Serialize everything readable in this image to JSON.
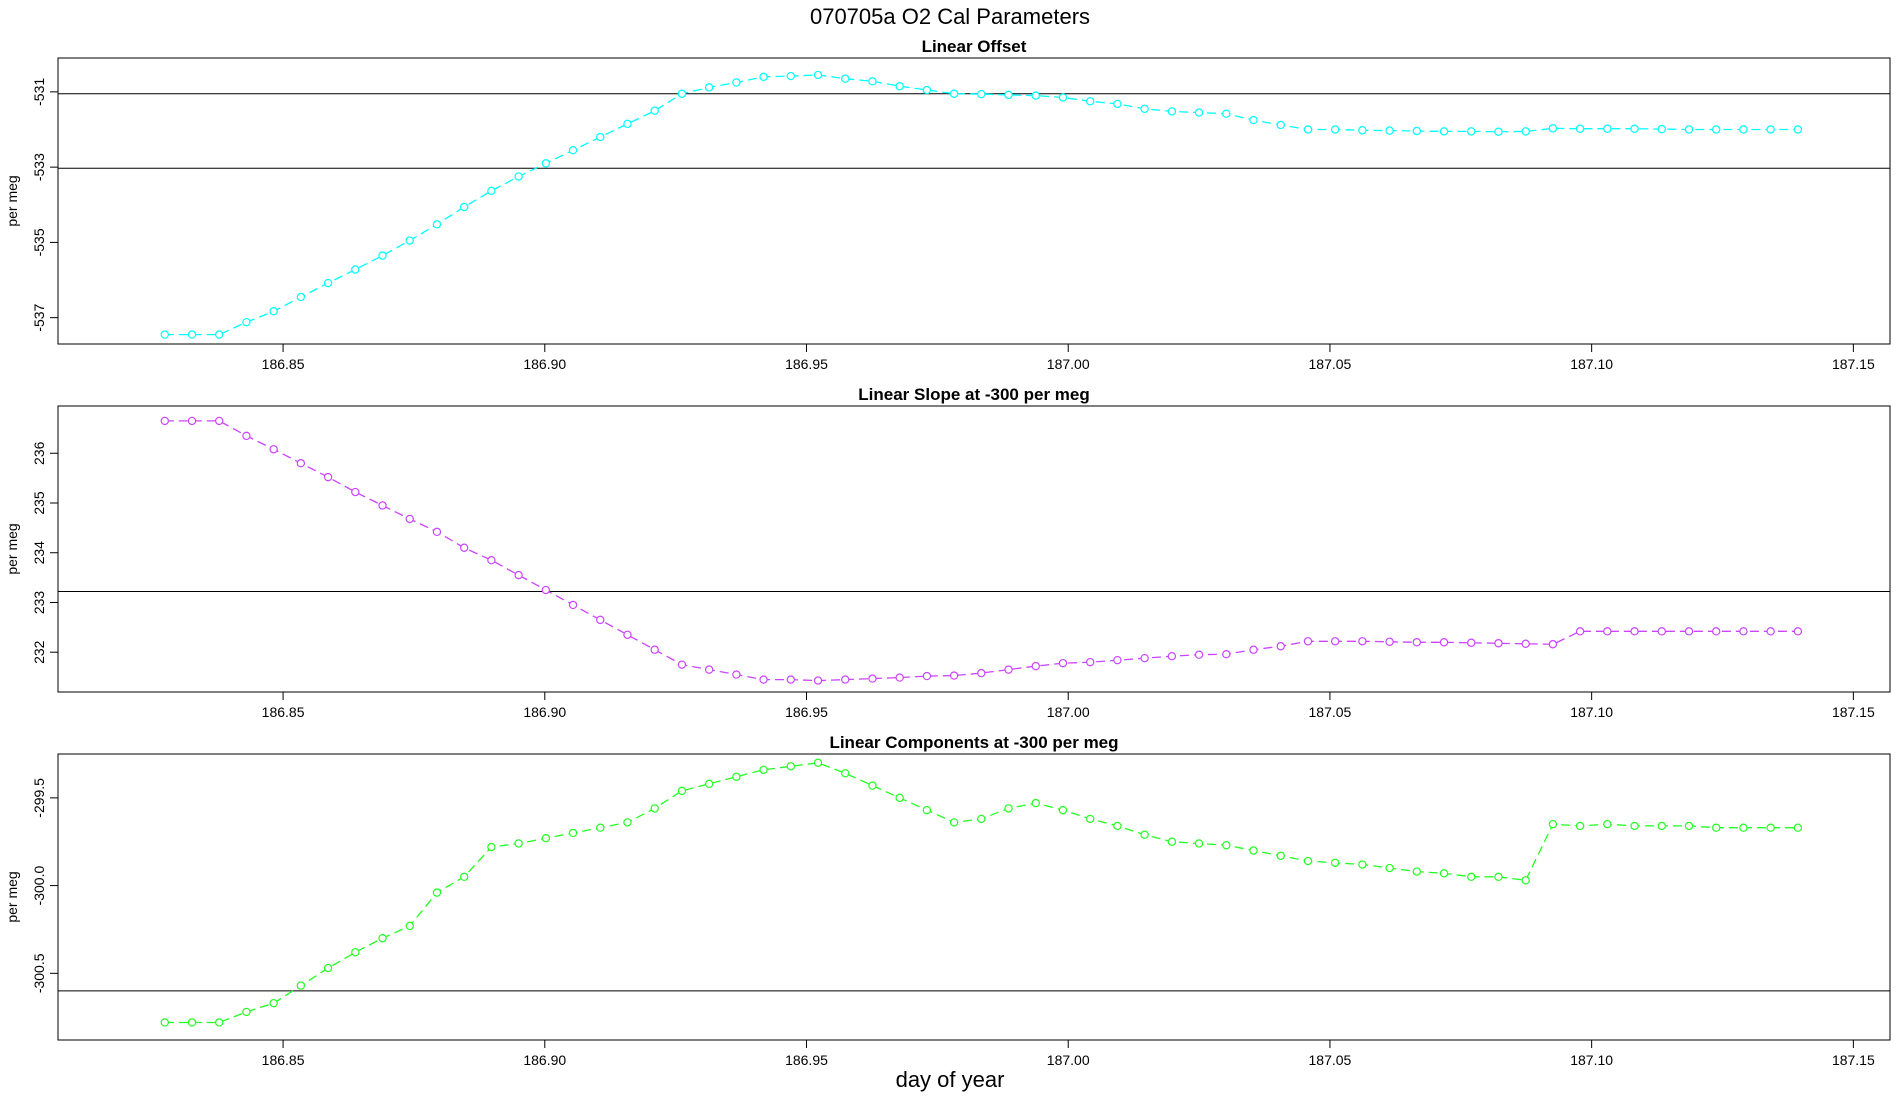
{
  "title": "070705a   O2 Cal Parameters",
  "xlabel": "day of year",
  "chart_data": [
    {
      "type": "line",
      "title": "Linear Offset",
      "ylabel": "per meg",
      "color": "#00ffff",
      "xlim": [
        186.807,
        187.157
      ],
      "ylim": [
        -537.7,
        -530.1
      ],
      "xticks": [
        "186.85",
        "186.90",
        "186.95",
        "187.00",
        "187.05",
        "187.10",
        "187.15"
      ],
      "yticks": [
        -537,
        -535,
        -533,
        -531
      ],
      "ytick_labels": [
        "-537",
        "-535",
        "-533",
        "-531"
      ],
      "hlines": [
        -531.05,
        -533.03
      ],
      "series": [
        {
          "x": [
            186.8274,
            186.8326,
            186.8378,
            186.843,
            186.8482,
            186.8534,
            186.8586,
            186.8638,
            186.869,
            186.8742,
            186.8794,
            186.8846,
            186.8898,
            186.895,
            186.9002,
            186.9054,
            186.9106,
            186.9158,
            186.921,
            186.9262,
            186.9314,
            186.9366,
            186.9418,
            186.947,
            186.9522,
            186.9574,
            186.9626,
            186.9678,
            186.973,
            186.9782,
            186.9834,
            186.9886,
            186.9938,
            186.999,
            187.0042,
            187.0094,
            187.0146,
            187.0198,
            187.025,
            187.0302,
            187.0354,
            187.0406,
            187.0458,
            187.051,
            187.0562,
            187.0614,
            187.0666,
            187.0718,
            187.077,
            187.0822,
            187.0874,
            187.0926,
            187.0978,
            187.103,
            187.1082,
            187.1134,
            187.1186,
            187.1238,
            187.129,
            187.1342,
            187.1394
          ],
          "y": [
            -537.45,
            -537.45,
            -537.45,
            -537.12,
            -536.83,
            -536.45,
            -536.08,
            -535.72,
            -535.35,
            -534.95,
            -534.52,
            -534.06,
            -533.63,
            -533.25,
            -532.9,
            -532.55,
            -532.2,
            -531.85,
            -531.5,
            -531.05,
            -530.88,
            -530.75,
            -530.6,
            -530.58,
            -530.55,
            -530.65,
            -530.72,
            -530.85,
            -530.95,
            -531.05,
            -531.06,
            -531.08,
            -531.1,
            -531.15,
            -531.25,
            -531.32,
            -531.45,
            -531.52,
            -531.55,
            -531.58,
            -531.75,
            -531.88,
            -532.0,
            -532.0,
            -532.02,
            -532.03,
            -532.04,
            -532.05,
            -532.05,
            -532.06,
            -532.05,
            -531.97,
            -531.98,
            -531.98,
            -531.98,
            -531.99,
            -532.0,
            -532.0,
            -532.0,
            -532.0,
            -532.0
          ]
        }
      ]
    },
    {
      "type": "line",
      "title": "Linear Slope at -300 per meg",
      "ylabel": "per meg",
      "color": "#cc44ff",
      "xlim": [
        186.807,
        187.157
      ],
      "ylim": [
        231.2,
        236.95
      ],
      "xticks": [
        "186.85",
        "186.90",
        "186.95",
        "187.00",
        "187.05",
        "187.10",
        "187.15"
      ],
      "yticks": [
        232,
        233,
        234,
        235,
        236
      ],
      "ytick_labels": [
        "232",
        "233",
        "234",
        "235",
        "236"
      ],
      "hlines": [
        233.22
      ],
      "series": [
        {
          "x": [
            186.8274,
            186.8326,
            186.8378,
            186.843,
            186.8482,
            186.8534,
            186.8586,
            186.8638,
            186.869,
            186.8742,
            186.8794,
            186.8846,
            186.8898,
            186.895,
            186.9002,
            186.9054,
            186.9106,
            186.9158,
            186.921,
            186.9262,
            186.9314,
            186.9366,
            186.9418,
            186.947,
            186.9522,
            186.9574,
            186.9626,
            186.9678,
            186.973,
            186.9782,
            186.9834,
            186.9886,
            186.9938,
            186.999,
            187.0042,
            187.0094,
            187.0146,
            187.0198,
            187.025,
            187.0302,
            187.0354,
            187.0406,
            187.0458,
            187.051,
            187.0562,
            187.0614,
            187.0666,
            187.0718,
            187.077,
            187.0822,
            187.0874,
            187.0926,
            187.0978,
            187.103,
            187.1082,
            187.1134,
            187.1186,
            187.1238,
            187.129,
            187.1342,
            187.1394
          ],
          "y": [
            236.65,
            236.65,
            236.65,
            236.35,
            236.08,
            235.8,
            235.52,
            235.22,
            234.95,
            234.68,
            234.42,
            234.1,
            233.85,
            233.55,
            233.25,
            232.95,
            232.65,
            232.35,
            232.05,
            231.75,
            231.65,
            231.55,
            231.45,
            231.45,
            231.43,
            231.45,
            231.47,
            231.49,
            231.52,
            231.53,
            231.58,
            231.65,
            231.72,
            231.78,
            231.8,
            231.84,
            231.88,
            231.92,
            231.95,
            231.96,
            232.05,
            232.12,
            232.22,
            232.22,
            232.22,
            232.21,
            232.2,
            232.2,
            232.19,
            232.18,
            232.17,
            232.16,
            232.42,
            232.42,
            232.42,
            232.42,
            232.42,
            232.42,
            232.42,
            232.42,
            232.42
          ]
        }
      ]
    },
    {
      "type": "line",
      "title": "Linear Components at -300 per meg",
      "ylabel": "per meg",
      "color": "#22ff22",
      "xlim": [
        186.807,
        187.157
      ],
      "ylim": [
        -300.88,
        -299.25
      ],
      "xticks": [
        "186.85",
        "186.90",
        "186.95",
        "187.00",
        "187.05",
        "187.10",
        "187.15"
      ],
      "yticks": [
        -300.5,
        -300.0,
        -299.5
      ],
      "ytick_labels": [
        "-300.5",
        "-300.0",
        "-299.5"
      ],
      "hlines": [
        -300.6
      ],
      "series": [
        {
          "x": [
            186.8274,
            186.8326,
            186.8378,
            186.843,
            186.8482,
            186.8534,
            186.8586,
            186.8638,
            186.869,
            186.8742,
            186.8794,
            186.8846,
            186.8898,
            186.895,
            186.9002,
            186.9054,
            186.9106,
            186.9158,
            186.921,
            186.9262,
            186.9314,
            186.9366,
            186.9418,
            186.947,
            186.9522,
            186.9574,
            186.9626,
            186.9678,
            186.973,
            186.9782,
            186.9834,
            186.9886,
            186.9938,
            186.999,
            187.0042,
            187.0094,
            187.0146,
            187.0198,
            187.025,
            187.0302,
            187.0354,
            187.0406,
            187.0458,
            187.051,
            187.0562,
            187.0614,
            187.0666,
            187.0718,
            187.077,
            187.0822,
            187.0874,
            187.0926,
            187.0978,
            187.103,
            187.1082,
            187.1134,
            187.1186,
            187.1238,
            187.129,
            187.1342,
            187.1394
          ],
          "y": [
            -300.78,
            -300.78,
            -300.78,
            -300.72,
            -300.67,
            -300.57,
            -300.47,
            -300.38,
            -300.3,
            -300.23,
            -300.04,
            -299.95,
            -299.78,
            -299.76,
            -299.73,
            -299.7,
            -299.67,
            -299.64,
            -299.56,
            -299.46,
            -299.42,
            -299.38,
            -299.34,
            -299.32,
            -299.3,
            -299.36,
            -299.43,
            -299.5,
            -299.57,
            -299.64,
            -299.62,
            -299.56,
            -299.53,
            -299.57,
            -299.62,
            -299.66,
            -299.71,
            -299.75,
            -299.76,
            -299.77,
            -299.8,
            -299.83,
            -299.86,
            -299.87,
            -299.88,
            -299.9,
            -299.92,
            -299.93,
            -299.95,
            -299.95,
            -299.97,
            -299.65,
            -299.66,
            -299.65,
            -299.66,
            -299.66,
            -299.66,
            -299.67,
            -299.67,
            -299.67,
            -299.67
          ]
        }
      ]
    }
  ]
}
